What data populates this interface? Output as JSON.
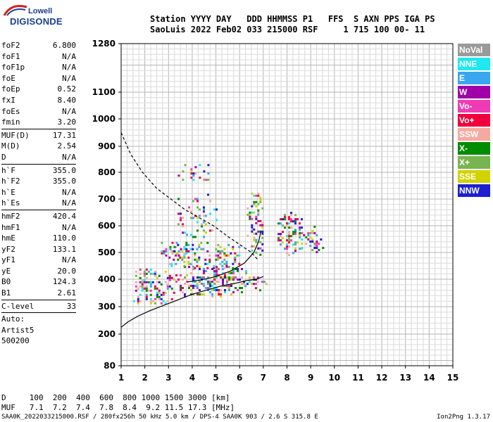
{
  "logo": {
    "line1": "Lowell",
    "line2": "DIGISONDE"
  },
  "header": {
    "line1": "Station YYYY DAY   DDD HHMMSS P1   FFS  S AXN PPS IGA PS",
    "line2": "SaoLuis 2022 Feb02 033 215000 RSF     1 715 100 00- 11"
  },
  "params": [
    [
      {
        "k": "foF2",
        "v": "6.800"
      },
      {
        "k": "foF1",
        "v": "N/A"
      },
      {
        "k": "foF1p",
        "v": "N/A"
      },
      {
        "k": "foE",
        "v": "N/A"
      },
      {
        "k": "foEp",
        "v": "0.52"
      },
      {
        "k": "fxI",
        "v": "8.40"
      },
      {
        "k": "foEs",
        "v": "N/A"
      },
      {
        "k": "fmin",
        "v": "3.20"
      }
    ],
    [
      {
        "k": "MUF(D)",
        "v": "17.31"
      },
      {
        "k": "M(D)",
        "v": "2.54"
      },
      {
        "k": "D",
        "v": "N/A"
      }
    ],
    [
      {
        "k": "h`F",
        "v": "355.0"
      },
      {
        "k": "h`F2",
        "v": "355.0"
      },
      {
        "k": "h`E",
        "v": "N/A"
      },
      {
        "k": "h`Es",
        "v": "N/A"
      }
    ],
    [
      {
        "k": "hmF2",
        "v": "420.4"
      },
      {
        "k": "hmF1",
        "v": "N/A"
      },
      {
        "k": "hmE",
        "v": "110.0"
      },
      {
        "k": "yF2",
        "v": "133.1"
      },
      {
        "k": "yF1",
        "v": "N/A"
      },
      {
        "k": "yE",
        "v": "20.0"
      },
      {
        "k": "B0",
        "v": "124.3"
      },
      {
        "k": "B1",
        "v": "2.61"
      }
    ],
    [
      {
        "k": "C-level",
        "v": "33"
      }
    ],
    [
      {
        "k": "Auto:",
        "v": ""
      },
      {
        "k": "Artist5",
        "v": ""
      },
      {
        "k": "500200",
        "v": ""
      }
    ]
  ],
  "legend": [
    {
      "label": "NoVal",
      "color": "#9a9a9a"
    },
    {
      "label": "NNE",
      "color": "#1ee8f0"
    },
    {
      "label": "E",
      "color": "#3aa6f0"
    },
    {
      "label": "W",
      "color": "#a000a8"
    },
    {
      "label": "Vo-",
      "color": "#f03cb4"
    },
    {
      "label": "Vo+",
      "color": "#f0003c"
    },
    {
      "label": "SSW",
      "color": "#f5aaa0"
    },
    {
      "label": "X-",
      "color": "#008c00"
    },
    {
      "label": "X+",
      "color": "#78b450"
    },
    {
      "label": "SSE",
      "color": "#d2d200"
    },
    {
      "label": "NNW",
      "color": "#1e1ed2"
    }
  ],
  "bottom": {
    "line1": "D     100  200  400  600  800 1000 1500 3000 [km]",
    "line2": "MUF   7.1  7.2  7.4  7.8  8.4  9.2 11.5 17.3 [MHz]"
  },
  "footer": {
    "left": "SAA0K_2022033215000.RSF / 280fx256h 50 kHz 5.0 km / DPS-4 SAA0K 903 / 2.6 S 315.8 E",
    "right": "Ion2Png 1.3.17"
  },
  "chart_data": {
    "type": "scatter",
    "x_ticks": [
      "1",
      "2",
      "3",
      "4",
      "5",
      "6",
      "7",
      "8",
      "9",
      "10",
      "11",
      "12",
      "13",
      "14",
      "15"
    ],
    "y_ticks": [
      {
        "value": 80,
        "label": "80"
      },
      {
        "value": 200,
        "label": "200"
      },
      {
        "value": 300,
        "label": "300"
      },
      {
        "value": 400,
        "label": "400"
      },
      {
        "value": 500,
        "label": "500"
      },
      {
        "value": 600,
        "label": "600"
      },
      {
        "value": 700,
        "label": "700"
      },
      {
        "value": 800,
        "label": "800"
      },
      {
        "value": 900,
        "label": "900"
      },
      {
        "value": 1000,
        "label": "1000"
      },
      {
        "value": 1100,
        "label": "1100"
      },
      {
        "value": 1280,
        "label": "1280"
      }
    ],
    "xlim": [
      1,
      15
    ],
    "ylim": [
      80,
      1280
    ],
    "y_scale": "nonlinear (compressed above 700 km)",
    "grid": true,
    "series": [
      {
        "x": [
          1.0,
          1.3,
          1.7,
          2.2,
          2.8,
          3.4,
          4.0,
          4.6,
          5.2,
          5.8,
          6.3,
          6.7,
          7.0
        ],
        "y": [
          225,
          245,
          265,
          285,
          305,
          325,
          345,
          360,
          375,
          385,
          395,
          400,
          410
        ]
      },
      {
        "x": [
          1.0,
          1.4,
          1.9,
          2.5,
          3.1,
          3.7,
          4.3,
          4.9,
          5.5,
          6.0,
          6.5,
          6.8
        ],
        "y": [
          950,
          870,
          800,
          740,
          700,
          660,
          630,
          600,
          560,
          530,
          500,
          470
        ]
      },
      {
        "x": [
          3.8,
          4.4,
          5.0,
          5.6,
          6.2,
          6.6,
          6.8,
          6.9
        ],
        "y": [
          390,
          398,
          410,
          430,
          460,
          500,
          540,
          580
        ]
      }
    ],
    "echo_regions": [
      {
        "x": [
          3.2,
          6.3
        ],
        "y": [
          340,
          450
        ],
        "density": 0.55
      },
      {
        "x": [
          1.5,
          3.2
        ],
        "y": [
          310,
          440
        ],
        "density": 0.45
      },
      {
        "x": [
          3.0,
          6.0
        ],
        "y": [
          440,
          540
        ],
        "density": 0.35
      },
      {
        "x": [
          3.2,
          5.0
        ],
        "y": [
          560,
          720
        ],
        "density": 0.18
      },
      {
        "x": [
          3.3,
          5.0
        ],
        "y": [
          760,
          840
        ],
        "density": 0.14
      },
      {
        "x": [
          6.3,
          7.0
        ],
        "y": [
          490,
          740
        ],
        "density": 0.45
      },
      {
        "x": [
          7.6,
          8.6
        ],
        "y": [
          490,
          660
        ],
        "density": 0.5
      },
      {
        "x": [
          8.5,
          9.5
        ],
        "y": [
          500,
          600
        ],
        "density": 0.3
      },
      {
        "x": [
          6.2,
          7.2
        ],
        "y": [
          360,
          410
        ],
        "density": 0.35
      },
      {
        "x": [
          2.5,
          3.5
        ],
        "y": [
          480,
          540
        ],
        "density": 0.3
      }
    ]
  }
}
